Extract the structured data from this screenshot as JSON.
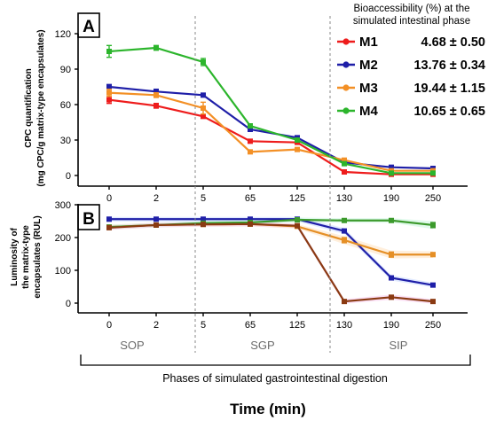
{
  "chart_data": [
    {
      "type": "line",
      "panel_label": "A",
      "categories": [
        "0",
        "2",
        "5",
        "65",
        "125",
        "130",
        "190",
        "250"
      ],
      "ylabel_line1": "CPC quantification",
      "ylabel_line2": "(mg CPC/g matrix-type  encapsulates)",
      "ylim": [
        0,
        120
      ],
      "yticks": [
        "0",
        "30",
        "60",
        "90",
        "120"
      ],
      "legend_title_line1": "Bioaccessibility (%) at the",
      "legend_title_line2": "simulated intestinal phase",
      "legend_placement": "top-right",
      "series": [
        {
          "name": "M1",
          "color": "#ee1c1c",
          "legend_value": "4.68 ± 0.50",
          "values": [
            64,
            59,
            50,
            29,
            28,
            3,
            1,
            1
          ],
          "errors": [
            3,
            2,
            1,
            1,
            1,
            1,
            1,
            1
          ]
        },
        {
          "name": "M2",
          "color": "#1f1fa8",
          "legend_value": "13.76 ± 0.34",
          "values": [
            75,
            71,
            68,
            39,
            32,
            11,
            7,
            6
          ],
          "errors": [
            2,
            2,
            1,
            1,
            1,
            1,
            1,
            1
          ]
        },
        {
          "name": "M3",
          "color": "#f39026",
          "legend_value": "19.44 ± 1.15",
          "values": [
            70,
            68,
            57,
            20,
            22,
            13,
            4,
            4
          ],
          "errors": [
            3,
            2,
            5,
            1,
            1,
            1,
            1,
            1
          ]
        },
        {
          "name": "M4",
          "color": "#2cb52c",
          "legend_value": "10.65 ± 0.65",
          "values": [
            105,
            108,
            96,
            42,
            30,
            10,
            2,
            2
          ],
          "errors": [
            5,
            2,
            3,
            1,
            1,
            1,
            1,
            1
          ]
        }
      ]
    },
    {
      "type": "line",
      "panel_label": "B",
      "categories": [
        "0",
        "2",
        "5",
        "65",
        "125",
        "130",
        "190",
        "250"
      ],
      "ylabel_line1": "Luminosity of",
      "ylabel_line2": "the matrix-type",
      "ylabel_line3": "encapsulates (RUL)",
      "ylim": [
        0,
        300
      ],
      "yticks": [
        "0",
        "100",
        "200",
        "300"
      ],
      "series": [
        {
          "color": "#1f1fa8",
          "values": [
            256,
            256,
            256,
            256,
            256,
            220,
            77,
            55
          ],
          "errors": [
            3,
            3,
            3,
            3,
            3,
            5,
            4,
            3
          ]
        },
        {
          "color": "#e58f26",
          "values": [
            232,
            238,
            240,
            241,
            234,
            192,
            148,
            148
          ],
          "errors": [
            3,
            3,
            3,
            3,
            3,
            8,
            8,
            6
          ]
        },
        {
          "color": "#3c9a2c",
          "values": [
            232,
            238,
            244,
            246,
            254,
            252,
            252,
            238
          ],
          "errors": [
            3,
            3,
            3,
            3,
            3,
            3,
            3,
            8
          ]
        },
        {
          "color": "#8a3a12",
          "values": [
            230,
            238,
            240,
            241,
            236,
            5,
            18,
            5
          ],
          "errors": [
            3,
            3,
            3,
            3,
            3,
            3,
            4,
            3
          ]
        }
      ]
    }
  ],
  "phases": [
    "SOP",
    "SGP",
    "SIP"
  ],
  "phase_caption": "Phases of simulated gastrointestinal digestion",
  "xlabel": "Time (min)"
}
